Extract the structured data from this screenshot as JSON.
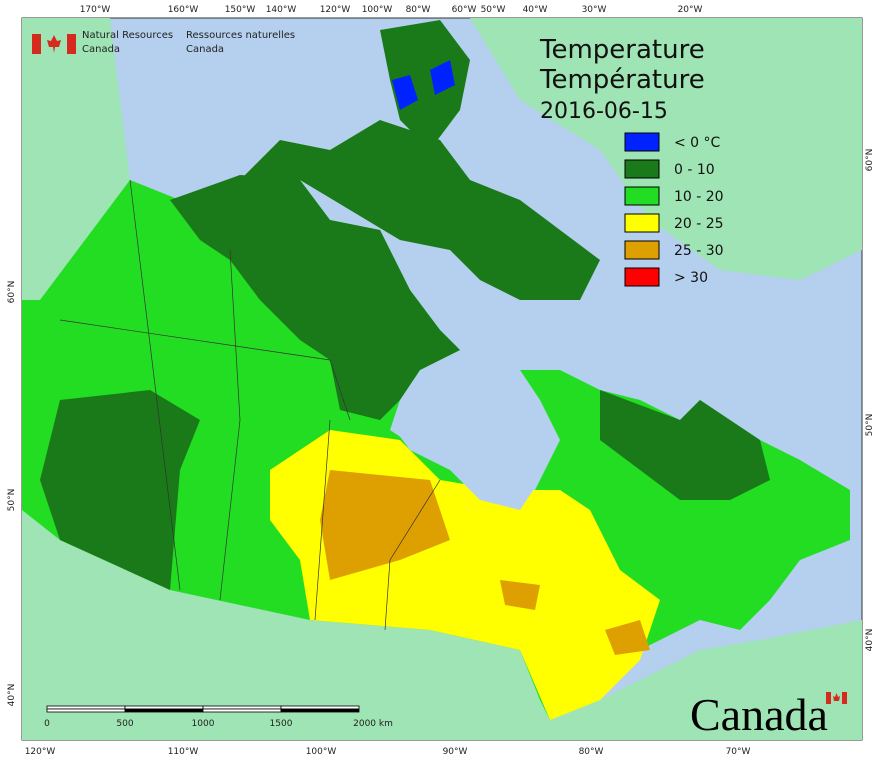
{
  "header": {
    "agency_en": [
      "Natural Resources",
      "Canada"
    ],
    "agency_fr": [
      "Ressources naturelles",
      "Canada"
    ]
  },
  "title": {
    "line1": "Temperature",
    "line2": "Température",
    "date": "2016-06-15"
  },
  "legend": [
    {
      "label": "< 0 °C",
      "color": "#0022ff"
    },
    {
      "label": "0 - 10",
      "color": "#1a7a1a"
    },
    {
      "label": "10 - 20",
      "color": "#22dd22"
    },
    {
      "label": "20 - 25",
      "color": "#ffff00"
    },
    {
      "label": "25 - 30",
      "color": "#dda000"
    },
    {
      "label": "> 30",
      "color": "#ff0000"
    }
  ],
  "graticule": {
    "top": [
      "170°W",
      "160°W",
      "150°W",
      "140°W",
      "120°W",
      "100°W",
      "80°W",
      "60°W",
      "50°W",
      "40°W",
      "30°W",
      "20°W"
    ],
    "bottom": [
      "120°W",
      "110°W",
      "100°W",
      "90°W",
      "80°W",
      "70°W"
    ],
    "left": [
      "60°N",
      "50°N",
      "40°N"
    ],
    "right": [
      "60°N",
      "50°N",
      "40°N"
    ]
  },
  "scale_bar": [
    "0",
    "500",
    "1000",
    "1500",
    "2000 km"
  ],
  "wordmark": "Canada"
}
